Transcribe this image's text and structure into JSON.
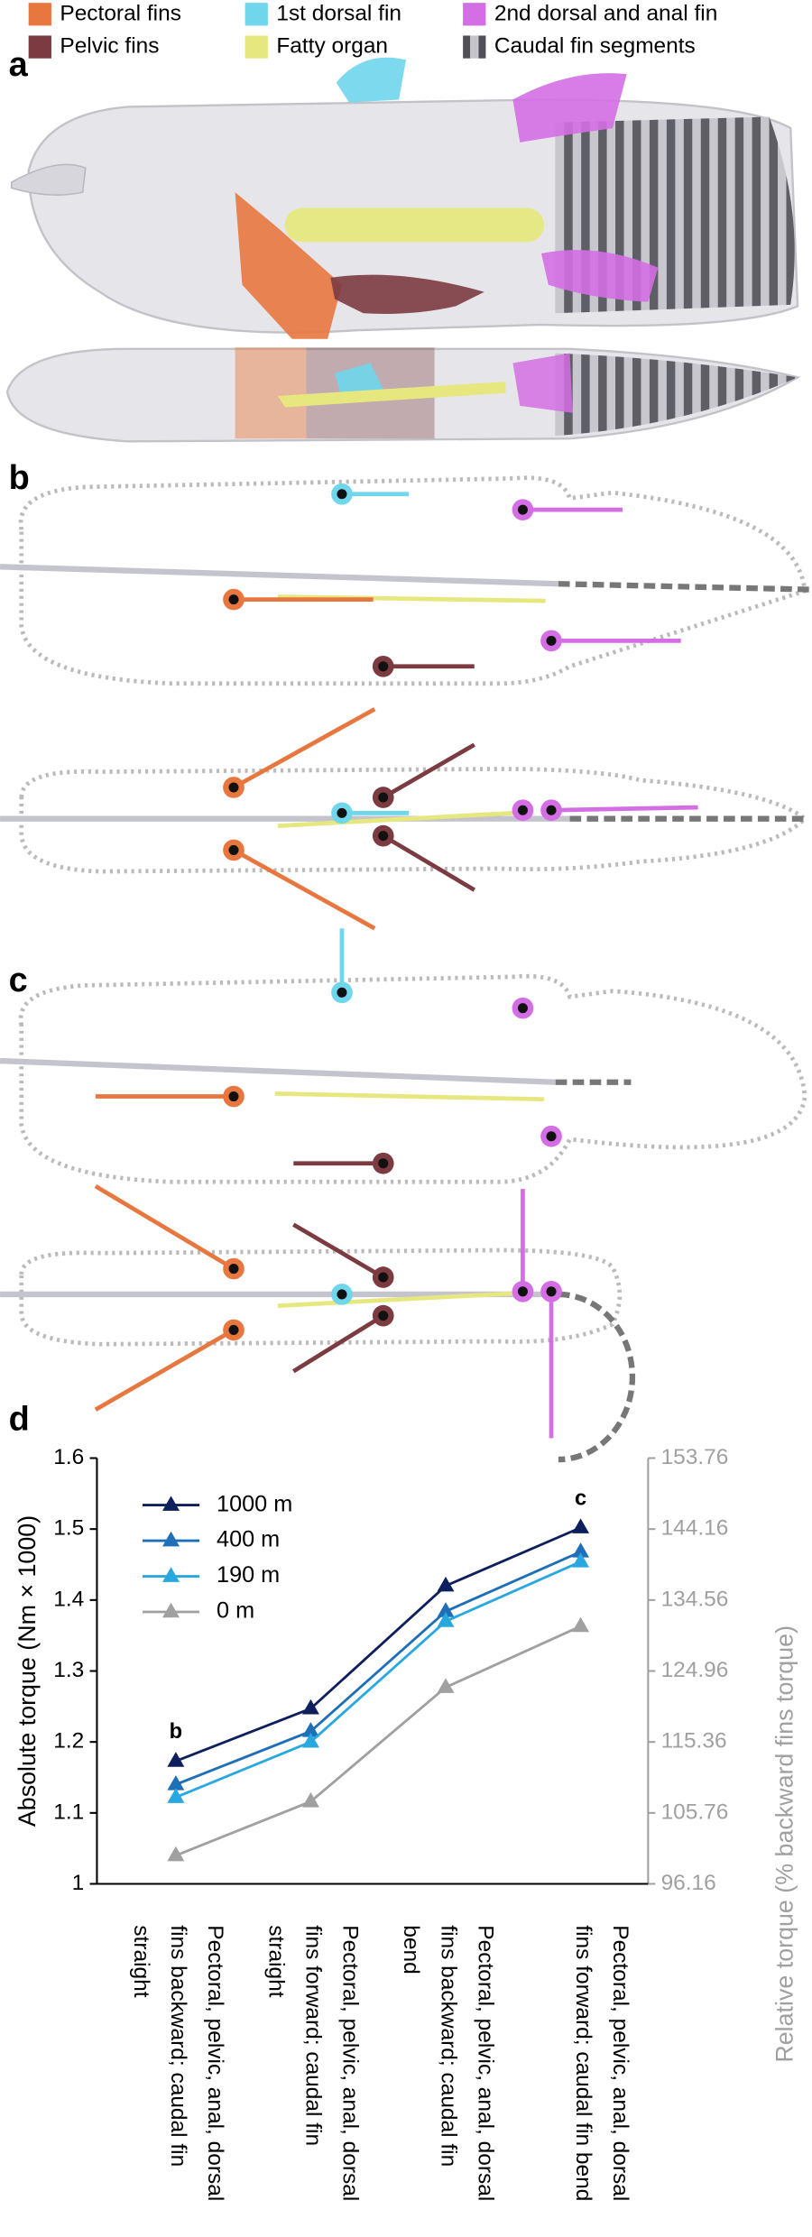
{
  "panel_labels": [
    "a",
    "b",
    "c",
    "d"
  ],
  "legend": [
    {
      "label": "Pectoral fins",
      "color": "#e8773f"
    },
    {
      "label": "1st dorsal fin",
      "color": "#6fd6ec"
    },
    {
      "label": "2nd dorsal and anal fin",
      "color": "#d46ee4"
    },
    {
      "label": "Pelvic fins",
      "color": "#7b3b40"
    },
    {
      "label": "Fatty organ",
      "color": "#e6e87f"
    },
    {
      "label": "Caudal fin segments",
      "color": "#6e6e78"
    }
  ],
  "chart_data": {
    "type": "line",
    "y_label": "Absolute torque (Nm × 1000)",
    "y2_label": "Relative torque (% backward fins torque)",
    "categories": [
      "Pectoral, pelvic, anal, dorsal fins backward; caudal fin straight",
      "Pectoral, pelvic, anal, dorsal fins forward; caudal fin straight",
      "Pectoral, pelvic, anal, dorsal fins backward; caudal fin bend",
      "Pectoral, pelvic, anal, dorsal fins forward; caudal fin bend"
    ],
    "series": [
      {
        "name": "1000 m",
        "color": "#0d1f5c",
        "values": [
          1.173,
          1.247,
          1.42,
          1.502
        ]
      },
      {
        "name": "400 m",
        "color": "#1f6fb8",
        "values": [
          1.14,
          1.215,
          1.384,
          1.468
        ]
      },
      {
        "name": "190 m",
        "color": "#29a8e0",
        "values": [
          1.122,
          1.2,
          1.37,
          1.454
        ]
      },
      {
        "name": "0 m",
        "color": "#a0a0a0",
        "values": [
          1.04,
          1.116,
          1.277,
          1.363
        ]
      }
    ],
    "annotations": [
      "b",
      "c"
    ],
    "ylim": [
      1,
      1.6
    ],
    "yticks": [
      1,
      1.1,
      1.2,
      1.3,
      1.4,
      1.5,
      1.6
    ],
    "y2lim": [
      96.16,
      153.76
    ],
    "y2ticks": [
      96.16,
      105.76,
      115.36,
      124.96,
      134.56,
      144.16,
      153.76
    ],
    "y2_color": "#a0a0a0",
    "legend_corner": "upper left",
    "grid": false
  }
}
